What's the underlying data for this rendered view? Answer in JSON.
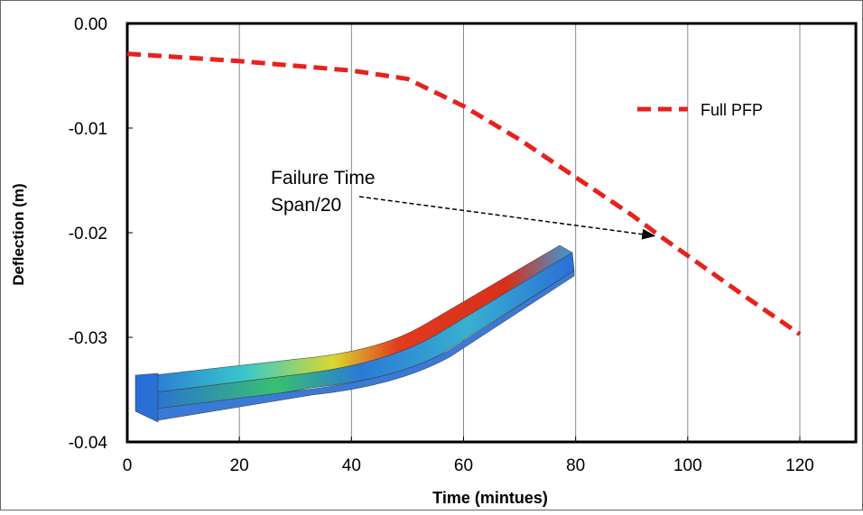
{
  "chart_data": {
    "type": "line",
    "x_label": "Time (mintues)",
    "y_label": "Deflection (m)",
    "series": [
      {
        "name": "Full PFP",
        "color": "#e8211c",
        "x": [
          0,
          20,
          40,
          50,
          60,
          70,
          80,
          90,
          95,
          100,
          110,
          120
        ],
        "values": [
          -0.0029,
          -0.0036,
          -0.0045,
          -0.0053,
          -0.0079,
          -0.0111,
          -0.0147,
          -0.0183,
          -0.0203,
          -0.0222,
          -0.026,
          -0.0297
        ]
      }
    ],
    "xlim": [
      0,
      130
    ],
    "xticks": [
      0,
      20,
      40,
      60,
      80,
      100,
      120
    ],
    "ylim": [
      -0.04,
      0
    ],
    "yticks": [
      {
        "value": 0,
        "label": "0.00"
      },
      -0.01,
      -0.02,
      -0.03,
      -0.04
    ],
    "grid": true,
    "legend": "upper right",
    "annotation": {
      "lines": [
        "Failure Time",
        "Span/20"
      ],
      "x": 95,
      "y": -0.0203
    }
  }
}
